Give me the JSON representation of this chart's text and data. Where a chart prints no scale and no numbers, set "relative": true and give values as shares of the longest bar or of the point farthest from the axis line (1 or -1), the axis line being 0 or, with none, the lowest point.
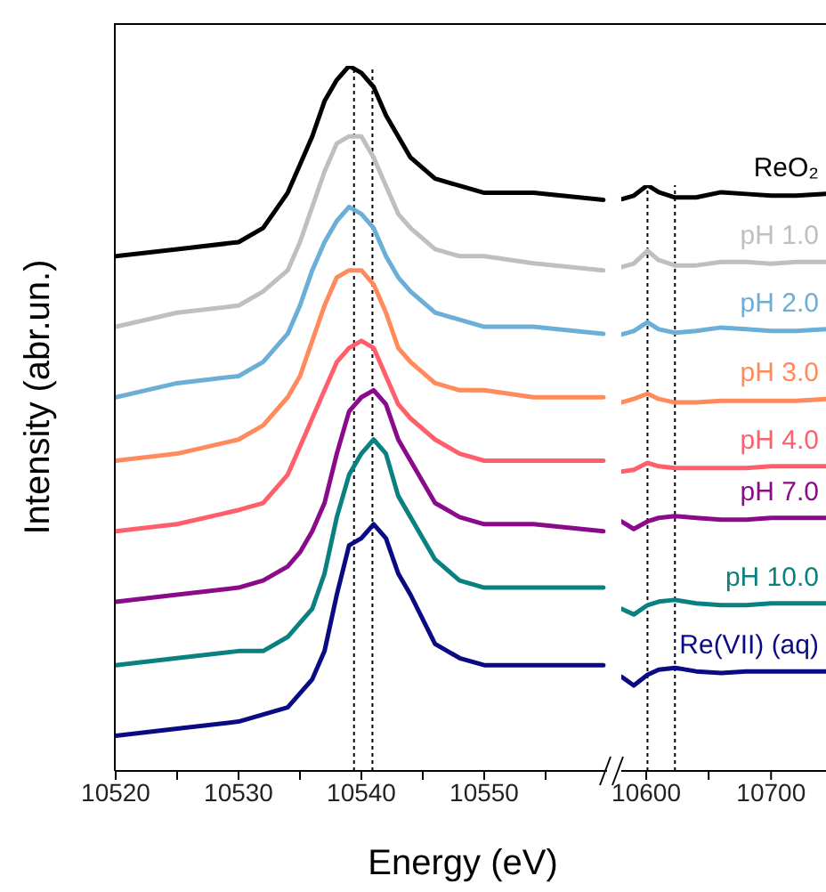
{
  "chart_data": [
    {
      "type": "line",
      "relative": true,
      "xlabel": "Energy (eV)",
      "ylabel": "Intensity (abr.un.)",
      "tick_labels": "x",
      "line_style": "solid",
      "marker": "none",
      "legend": false,
      "x": [
        10520,
        10525,
        10530,
        10532,
        10534,
        10535,
        10536,
        10537,
        10538,
        10539,
        10540,
        10541,
        10542,
        10543,
        10544,
        10546,
        10548,
        10550,
        10554,
        10559.7
      ],
      "xlim": [
        10520,
        10560
      ],
      "xticks": [
        10520,
        {
          "value": 10525,
          "label": null
        },
        10530,
        {
          "value": 10535,
          "label": null
        },
        10540,
        {
          "value": 10545,
          "label": null
        },
        10550,
        {
          "value": 10555,
          "label": null
        }
      ],
      "ref_lines": [
        {
          "axis": "x",
          "value": 10539.4,
          "color": "#000000",
          "line_style": "dotted"
        },
        {
          "axis": "x",
          "value": 10540.9,
          "color": "#000000",
          "line_style": "dotted"
        }
      ],
      "series": [
        {
          "color": "#000000",
          "values": [
            0.73,
            0.74,
            0.75,
            0.77,
            0.82,
            0.86,
            0.9,
            0.95,
            0.98,
            1,
            0.99,
            0.97,
            0.93,
            0.9,
            0.87,
            0.84,
            0.83,
            0.82,
            0.82,
            0.81
          ]
        },
        {
          "color": "#bfbfbf",
          "values": [
            0.63,
            0.65,
            0.66,
            0.68,
            0.71,
            0.75,
            0.8,
            0.85,
            0.89,
            0.9,
            0.9,
            0.87,
            0.83,
            0.79,
            0.77,
            0.74,
            0.73,
            0.73,
            0.72,
            0.71
          ]
        },
        {
          "color": "#6baed6",
          "values": [
            0.53,
            0.55,
            0.56,
            0.58,
            0.62,
            0.66,
            0.71,
            0.75,
            0.78,
            0.8,
            0.79,
            0.77,
            0.73,
            0.7,
            0.68,
            0.65,
            0.64,
            0.63,
            0.63,
            0.62
          ]
        },
        {
          "color": "#ff8a5c",
          "values": [
            0.44,
            0.45,
            0.47,
            0.49,
            0.53,
            0.56,
            0.61,
            0.66,
            0.7,
            0.71,
            0.71,
            0.69,
            0.65,
            0.6,
            0.58,
            0.55,
            0.54,
            0.54,
            0.53,
            0.53
          ]
        },
        {
          "color": "#ff5f6a",
          "values": [
            0.34,
            0.35,
            0.37,
            0.38,
            0.42,
            0.46,
            0.5,
            0.54,
            0.58,
            0.6,
            0.61,
            0.6,
            0.56,
            0.52,
            0.5,
            0.47,
            0.45,
            0.44,
            0.44,
            0.44
          ]
        },
        {
          "color": "#8b0a8b",
          "values": [
            0.24,
            0.25,
            0.26,
            0.27,
            0.29,
            0.31,
            0.34,
            0.38,
            0.45,
            0.51,
            0.53,
            0.54,
            0.52,
            0.47,
            0.44,
            0.38,
            0.36,
            0.35,
            0.35,
            0.34
          ]
        },
        {
          "color": "#0a8080",
          "values": [
            0.15,
            0.16,
            0.17,
            0.17,
            0.19,
            0.21,
            0.23,
            0.28,
            0.36,
            0.42,
            0.45,
            0.47,
            0.45,
            0.39,
            0.36,
            0.3,
            0.27,
            0.26,
            0.26,
            0.26
          ]
        },
        {
          "color": "#0a0a84",
          "values": [
            0.05,
            0.06,
            0.07,
            0.08,
            0.09,
            0.11,
            0.13,
            0.17,
            0.25,
            0.32,
            0.33,
            0.35,
            0.33,
            0.28,
            0.25,
            0.18,
            0.16,
            0.15,
            0.15,
            0.15
          ]
        }
      ]
    },
    {
      "type": "line",
      "relative": true,
      "tick_labels": "x",
      "line_style": "solid",
      "marker": "none",
      "legend": false,
      "x": [
        10580,
        10590,
        10601,
        10610,
        10623,
        10640,
        10660,
        10680,
        10700,
        10720,
        10744
      ],
      "xlim": [
        10580,
        10744
      ],
      "xticks": [
        10600,
        {
          "value": 10650,
          "label": null
        },
        10700
      ],
      "ref_lines": [
        {
          "axis": "x",
          "value": 10601,
          "color": "#000000",
          "line_style": "dotted"
        },
        {
          "axis": "x",
          "value": 10623,
          "color": "#000000",
          "line_style": "dotted"
        }
      ],
      "series": [
        {
          "name": "ReO₂",
          "color": "#000000",
          "values": [
            0.976,
            0.982,
            1,
            0.988,
            0.979,
            0.979,
            0.988,
            0.985,
            0.982,
            0.982,
            0.985
          ]
        },
        {
          "name": "pH 1.0",
          "color": "#bfbfbf",
          "values": [
            0.86,
            0.866,
            0.888,
            0.872,
            0.863,
            0.863,
            0.869,
            0.869,
            0.866,
            0.869,
            0.869
          ]
        },
        {
          "name": "pH 2.0",
          "color": "#6baed6",
          "values": [
            0.745,
            0.751,
            0.766,
            0.754,
            0.748,
            0.751,
            0.757,
            0.754,
            0.751,
            0.751,
            0.754
          ]
        },
        {
          "name": "pH 3.0",
          "color": "#ff8a5c",
          "values": [
            0.629,
            0.635,
            0.644,
            0.635,
            0.629,
            0.629,
            0.632,
            0.632,
            0.632,
            0.632,
            0.635
          ]
        },
        {
          "name": "pH 4.0",
          "color": "#ff5f6a",
          "values": [
            0.511,
            0.514,
            0.526,
            0.52,
            0.517,
            0.517,
            0.517,
            0.517,
            0.52,
            0.52,
            0.52
          ]
        },
        {
          "name": "pH 7.0",
          "color": "#8b0a8b",
          "values": [
            0.426,
            0.413,
            0.426,
            0.432,
            0.435,
            0.432,
            0.429,
            0.429,
            0.432,
            0.432,
            0.432
          ]
        },
        {
          "name": "pH 10.0",
          "color": "#0a8080",
          "values": [
            0.277,
            0.267,
            0.283,
            0.289,
            0.292,
            0.286,
            0.283,
            0.283,
            0.286,
            0.286,
            0.286
          ]
        },
        {
          "name": "Re(VII) (aq)",
          "color": "#0a0a84",
          "values": [
            0.161,
            0.146,
            0.164,
            0.173,
            0.176,
            0.17,
            0.167,
            0.17,
            0.17,
            0.17,
            0.17
          ]
        }
      ]
    }
  ]
}
